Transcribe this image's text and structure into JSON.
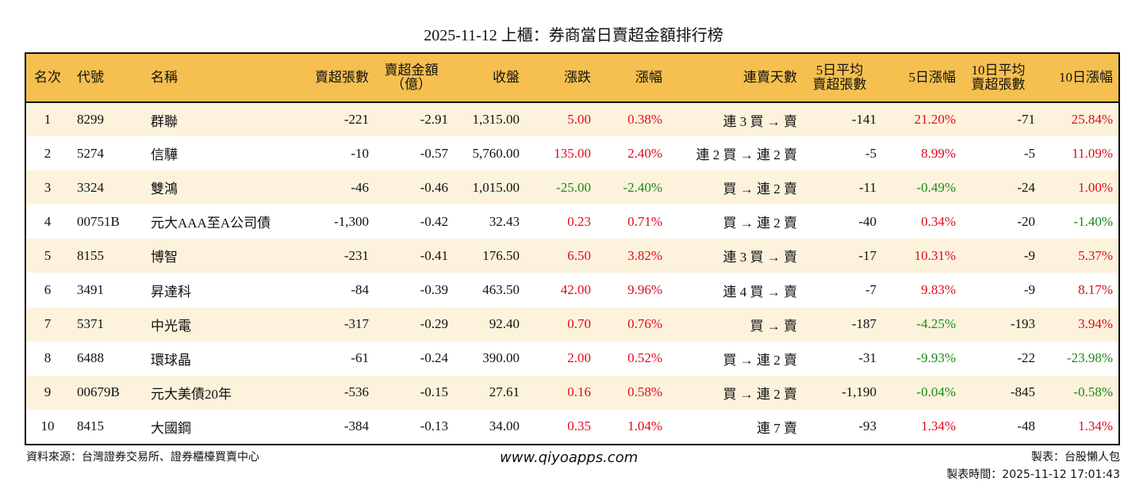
{
  "title": "2025-11-12 上櫃：券商當日賣超金額排行榜",
  "colors": {
    "header_bg": "#f5c04f",
    "stripe_bg": "#fdf3dc",
    "up": "#e0091f",
    "down": "#1b8a1b"
  },
  "columns": [
    "名次",
    "代號",
    "名稱",
    "賣超張數",
    "賣超金額\n（億）",
    "收盤",
    "漲跌",
    "漲幅",
    "連賣天數",
    "5日平均\n賣超張數",
    "5日漲幅",
    "10日平均\n賣超張數",
    "10日漲幅"
  ],
  "rows": [
    [
      "1",
      "8299",
      "群聯",
      "-221",
      "-2.91",
      "1,315.00",
      "5.00",
      "0.38%",
      "連 3 買 → 賣",
      "-141",
      "21.20%",
      "-71",
      "25.84%"
    ],
    [
      "2",
      "5274",
      "信驊",
      "-10",
      "-0.57",
      "5,760.00",
      "135.00",
      "2.40%",
      "連 2 買 → 連 2 賣",
      "-5",
      "8.99%",
      "-5",
      "11.09%"
    ],
    [
      "3",
      "3324",
      "雙鴻",
      "-46",
      "-0.46",
      "1,015.00",
      "-25.00",
      "-2.40%",
      "買 → 連 2 賣",
      "-11",
      "-0.49%",
      "-24",
      "1.00%"
    ],
    [
      "4",
      "00751B",
      "元大AAA至A公司債",
      "-1,300",
      "-0.42",
      "32.43",
      "0.23",
      "0.71%",
      "買 → 連 2 賣",
      "-40",
      "0.34%",
      "-20",
      "-1.40%"
    ],
    [
      "5",
      "8155",
      "博智",
      "-231",
      "-0.41",
      "176.50",
      "6.50",
      "3.82%",
      "連 3 買 → 賣",
      "-17",
      "10.31%",
      "-9",
      "5.37%"
    ],
    [
      "6",
      "3491",
      "昇達科",
      "-84",
      "-0.39",
      "463.50",
      "42.00",
      "9.96%",
      "連 4 買 → 賣",
      "-7",
      "9.83%",
      "-9",
      "8.17%"
    ],
    [
      "7",
      "5371",
      "中光電",
      "-317",
      "-0.29",
      "92.40",
      "0.70",
      "0.76%",
      "買 → 賣",
      "-187",
      "-4.25%",
      "-193",
      "3.94%"
    ],
    [
      "8",
      "6488",
      "環球晶",
      "-61",
      "-0.24",
      "390.00",
      "2.00",
      "0.52%",
      "買 → 連 2 賣",
      "-31",
      "-9.93%",
      "-22",
      "-23.98%"
    ],
    [
      "9",
      "00679B",
      "元大美債20年",
      "-536",
      "-0.15",
      "27.61",
      "0.16",
      "0.58%",
      "買 → 連 2 賣",
      "-1,190",
      "-0.04%",
      "-845",
      "-0.58%"
    ],
    [
      "10",
      "8415",
      "大國鋼",
      "-384",
      "-0.13",
      "34.00",
      "0.35",
      "1.04%",
      "連 7 賣",
      "-93",
      "1.34%",
      "-48",
      "1.34%"
    ]
  ],
  "footer": {
    "source": "資料來源：台灣證券交易所、證券櫃檯買賣中心",
    "website": "www.qiyoapps.com",
    "author": "製表：台股懶人包",
    "time": "製表時間：2025-11-12 17:01:43"
  }
}
